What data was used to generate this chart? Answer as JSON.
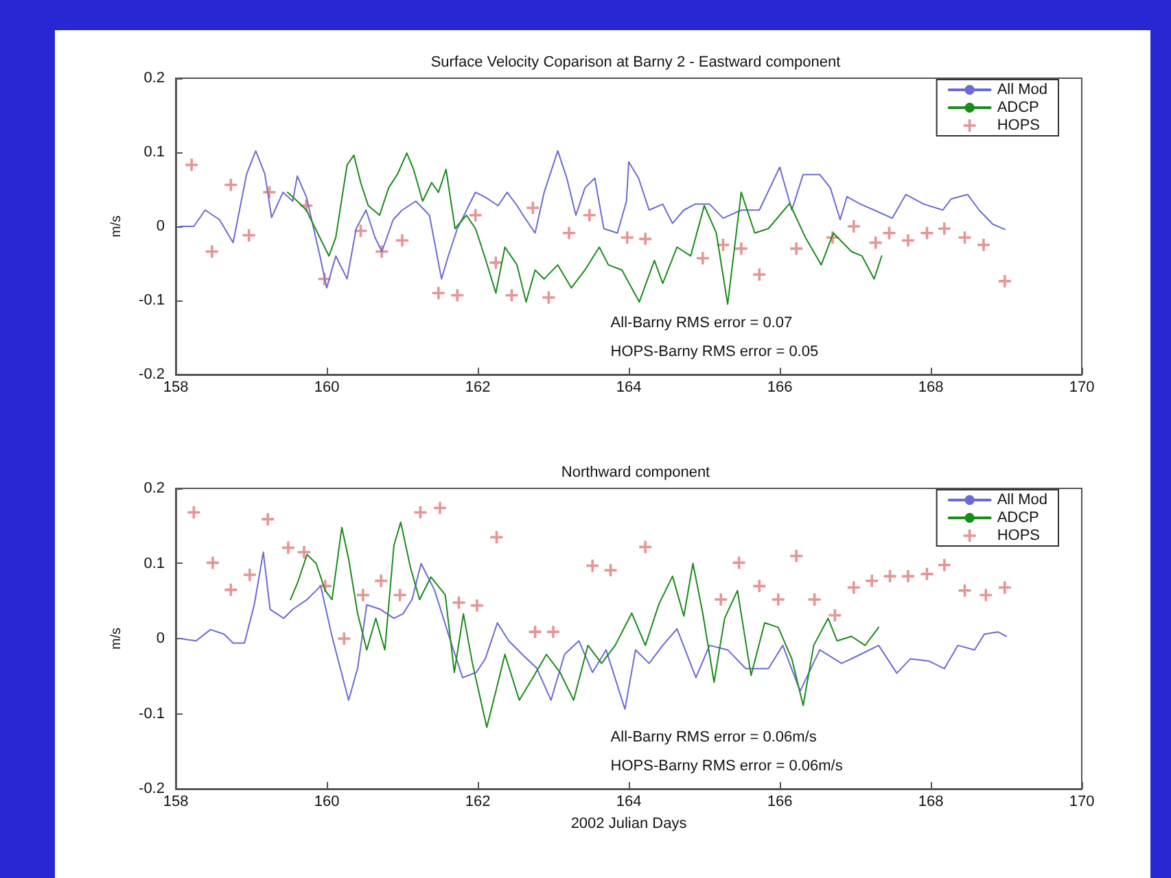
{
  "chart_data": [
    {
      "type": "line",
      "title": "Surface Velocity Coparison at Barny 2 - Eastward component",
      "ylabel": "m/s",
      "xlim": [
        158,
        170
      ],
      "xticks": [
        158,
        160,
        162,
        164,
        166,
        168,
        170
      ],
      "ylim": [
        -0.2,
        0.2
      ],
      "yticks": [
        -0.2,
        -0.1,
        0,
        0.1,
        0.2
      ],
      "grid": false,
      "legend": "top right",
      "annotations": [
        "All-Barny RMS error = 0.07",
        "HOPS-Barny RMS error = 0.05"
      ],
      "series": [
        {
          "name": "All Mod",
          "color": "#6b6bd6",
          "marker": "none",
          "x": [
            158.06,
            158.24,
            158.39,
            158.58,
            158.76,
            158.94,
            159.06,
            159.18,
            159.27,
            159.42,
            159.55,
            159.61,
            159.73,
            159.91,
            160.0,
            160.12,
            160.27,
            160.39,
            160.52,
            160.64,
            160.73,
            160.88,
            161.0,
            161.18,
            161.36,
            161.52,
            161.61,
            161.73,
            161.97,
            162.09,
            162.27,
            162.39,
            162.52,
            162.64,
            162.76,
            162.88,
            163.06,
            163.18,
            163.3,
            163.42,
            163.55,
            163.67,
            163.85,
            163.97,
            164.0,
            164.13,
            164.27,
            164.45,
            164.58,
            164.73,
            164.88,
            165.07,
            165.25,
            165.49,
            165.73,
            166.0,
            166.16,
            166.31,
            166.53,
            166.67,
            166.8,
            166.89,
            167.07,
            167.25,
            167.49,
            167.67,
            167.91,
            168.16,
            168.27,
            168.49,
            168.64,
            168.82,
            168.98
          ],
          "values": [
            0,
            0,
            0.022,
            0.009,
            -0.022,
            0.071,
            0.102,
            0.071,
            0.012,
            0.046,
            0.034,
            0.068,
            0.04,
            -0.04,
            -0.083,
            -0.04,
            -0.071,
            -0.003,
            0.022,
            -0.015,
            -0.034,
            0.009,
            0.022,
            0.034,
            0.015,
            -0.071,
            -0.04,
            -0.003,
            0.046,
            0.04,
            0.028,
            0.046,
            0.028,
            0.009,
            -0.009,
            0.046,
            0.102,
            0.065,
            0.015,
            0.052,
            0.065,
            -0.003,
            -0.009,
            0.034,
            0.087,
            0.065,
            0.022,
            0.03,
            0.004,
            0.022,
            0.03,
            0.03,
            0.011,
            0.022,
            0.022,
            0.08,
            0.022,
            0.07,
            0.07,
            0.052,
            0.009,
            0.04,
            0.03,
            0.022,
            0.011,
            0.043,
            0.03,
            0.022,
            0.037,
            0.043,
            0.022,
            0.003,
            -0.004
          ]
        },
        {
          "name": "ADCP",
          "color": "#1a8c1a",
          "marker": "none",
          "x": [
            159.48,
            159.61,
            159.73,
            159.85,
            160.03,
            160.12,
            160.27,
            160.36,
            160.45,
            160.55,
            160.7,
            160.82,
            160.94,
            161.06,
            161.15,
            161.27,
            161.39,
            161.48,
            161.58,
            161.7,
            161.85,
            161.97,
            162.09,
            162.24,
            162.36,
            162.52,
            162.64,
            162.76,
            162.88,
            163.06,
            163.24,
            163.42,
            163.61,
            163.73,
            163.91,
            164.14,
            164.34,
            164.45,
            164.64,
            164.82,
            165.0,
            165.16,
            165.31,
            165.49,
            165.67,
            165.85,
            166.13,
            166.34,
            166.55,
            166.71,
            166.95,
            167.09,
            167.25,
            167.35
          ],
          "values": [
            0.046,
            0.034,
            0.022,
            -0.003,
            -0.04,
            -0.015,
            0.083,
            0.096,
            0.059,
            0.028,
            0.015,
            0.052,
            0.071,
            0.099,
            0.077,
            0.034,
            0.059,
            0.046,
            0.077,
            -0.003,
            0.015,
            -0.003,
            -0.04,
            -0.09,
            -0.028,
            -0.052,
            -0.102,
            -0.059,
            -0.071,
            -0.052,
            -0.083,
            -0.059,
            -0.028,
            -0.052,
            -0.059,
            -0.102,
            -0.046,
            -0.077,
            -0.028,
            -0.04,
            0.028,
            -0.009,
            -0.105,
            0.046,
            -0.009,
            -0.003,
            0.031,
            -0.015,
            -0.052,
            -0.009,
            -0.034,
            -0.04,
            -0.071,
            -0.04
          ]
        },
        {
          "name": "HOPS",
          "type": "scatter",
          "color": "#e07a7a",
          "marker": "cross",
          "x": [
            158.21,
            158.48,
            158.73,
            158.97,
            159.24,
            159.73,
            159.97,
            160.45,
            160.73,
            161.0,
            161.48,
            161.73,
            161.97,
            162.24,
            162.45,
            162.73,
            162.94,
            163.21,
            163.48,
            163.98,
            164.22,
            164.98,
            165.25,
            165.49,
            165.73,
            166.22,
            166.7,
            166.98,
            167.27,
            167.45,
            167.7,
            167.95,
            168.18,
            168.45,
            168.7,
            168.98
          ],
          "values": [
            0.083,
            -0.034,
            0.056,
            -0.012,
            0.046,
            0.028,
            -0.071,
            -0.006,
            -0.034,
            -0.019,
            -0.09,
            -0.093,
            0.015,
            -0.049,
            -0.093,
            0.025,
            -0.096,
            -0.009,
            0.015,
            -0.015,
            -0.017,
            -0.043,
            -0.025,
            -0.03,
            -0.065,
            -0.03,
            -0.015,
            0,
            -0.022,
            -0.009,
            -0.019,
            -0.009,
            -0.003,
            -0.015,
            -0.025,
            -0.074
          ]
        }
      ]
    },
    {
      "type": "line",
      "title": "Northward component",
      "xlabel": "2002 Julian Days",
      "ylabel": "m/s",
      "xlim": [
        158,
        170
      ],
      "xticks": [
        158,
        160,
        162,
        164,
        166,
        168,
        170
      ],
      "ylim": [
        -0.2,
        0.2
      ],
      "yticks": [
        -0.2,
        -0.1,
        0,
        0.1,
        0.2
      ],
      "grid": false,
      "legend": "top right",
      "annotations": [
        "All-Barny RMS error = 0.06m/s",
        "HOPS-Barny RMS error = 0.06m/s"
      ],
      "series": [
        {
          "name": "All Mod",
          "color": "#6b6bd6",
          "marker": "none",
          "x": [
            158.06,
            158.27,
            158.46,
            158.64,
            158.76,
            158.91,
            159.04,
            159.16,
            159.25,
            159.43,
            159.55,
            159.74,
            159.92,
            160.07,
            160.29,
            160.41,
            160.53,
            160.71,
            160.89,
            161.01,
            161.13,
            161.25,
            161.43,
            161.62,
            161.8,
            161.98,
            162.1,
            162.26,
            162.41,
            162.59,
            162.78,
            162.97,
            163.15,
            163.34,
            163.52,
            163.7,
            163.95,
            164.09,
            164.27,
            164.45,
            164.64,
            164.89,
            165.07,
            165.31,
            165.55,
            165.85,
            166.04,
            166.27,
            166.53,
            166.82,
            167.07,
            167.31,
            167.55,
            167.73,
            167.98,
            168.18,
            168.36,
            168.58,
            168.71,
            168.89,
            169.0
          ],
          "values": [
            0,
            -0.003,
            0.012,
            0.006,
            -0.006,
            -0.006,
            0.045,
            0.115,
            0.039,
            0.027,
            0.039,
            0.052,
            0.07,
            0.003,
            -0.082,
            -0.039,
            0.045,
            0.039,
            0.027,
            0.033,
            0.052,
            0.1,
            0.064,
            0.003,
            -0.052,
            -0.045,
            -0.027,
            0.021,
            -0.003,
            -0.021,
            -0.039,
            -0.082,
            -0.021,
            -0.003,
            -0.045,
            -0.015,
            -0.094,
            -0.015,
            -0.033,
            -0.009,
            0.013,
            -0.052,
            -0.009,
            -0.015,
            -0.04,
            -0.04,
            -0.009,
            -0.07,
            -0.015,
            -0.033,
            -0.021,
            -0.009,
            -0.046,
            -0.027,
            -0.03,
            -0.04,
            -0.009,
            -0.015,
            0.006,
            0.009,
            0.003
          ]
        },
        {
          "name": "ADCP",
          "color": "#1a8c1a",
          "marker": "none",
          "x": [
            159.52,
            159.62,
            159.74,
            159.86,
            159.98,
            160.07,
            160.2,
            160.29,
            160.41,
            160.53,
            160.65,
            160.77,
            160.89,
            160.98,
            161.11,
            161.23,
            161.38,
            161.57,
            161.69,
            161.81,
            161.93,
            162.12,
            162.24,
            162.36,
            162.55,
            162.73,
            162.91,
            163.09,
            163.27,
            163.46,
            163.64,
            163.82,
            164.04,
            164.22,
            164.4,
            164.58,
            164.73,
            164.85,
            164.98,
            165.13,
            165.27,
            165.44,
            165.62,
            165.8,
            165.98,
            166.16,
            166.31,
            166.45,
            166.64,
            166.76,
            166.95,
            167.13,
            167.31
          ],
          "values": [
            0.052,
            0.076,
            0.112,
            0.1,
            0.064,
            0.052,
            0.148,
            0.106,
            0.033,
            -0.015,
            0.027,
            -0.015,
            0.124,
            0.155,
            0.094,
            0.052,
            0.082,
            0.058,
            -0.045,
            0.033,
            -0.033,
            -0.118,
            -0.07,
            -0.021,
            -0.082,
            -0.052,
            -0.021,
            -0.045,
            -0.082,
            -0.009,
            -0.033,
            -0.009,
            0.034,
            -0.009,
            0.046,
            0.083,
            0.03,
            0.1,
            0.034,
            -0.058,
            0.027,
            0.064,
            -0.049,
            0.021,
            0.015,
            -0.027,
            -0.089,
            -0.009,
            0.027,
            -0.003,
            0.003,
            -0.009,
            0.015
          ]
        },
        {
          "name": "HOPS",
          "type": "scatter",
          "color": "#e07a7a",
          "marker": "cross",
          "x": [
            158.24,
            158.49,
            158.73,
            158.98,
            159.22,
            159.49,
            159.7,
            159.98,
            160.23,
            160.48,
            160.72,
            160.97,
            161.24,
            161.5,
            161.75,
            161.99,
            162.25,
            162.76,
            163.0,
            163.52,
            163.76,
            164.22,
            165.22,
            165.46,
            165.73,
            165.98,
            166.22,
            166.46,
            166.73,
            166.98,
            167.22,
            167.46,
            167.7,
            167.95,
            168.18,
            168.45,
            168.73,
            168.98
          ],
          "values": [
            0.168,
            0.101,
            0.065,
            0.085,
            0.159,
            0.121,
            0.115,
            0.07,
            0,
            0.058,
            0.077,
            0.058,
            0.168,
            0.174,
            0.048,
            0.044,
            0.135,
            0.009,
            0.009,
            0.097,
            0.091,
            0.122,
            0.052,
            0.101,
            0.07,
            0.052,
            0.11,
            0.052,
            0.031,
            0.068,
            0.077,
            0.083,
            0.083,
            0.086,
            0.098,
            0.064,
            0.058,
            0.068
          ]
        }
      ]
    }
  ]
}
